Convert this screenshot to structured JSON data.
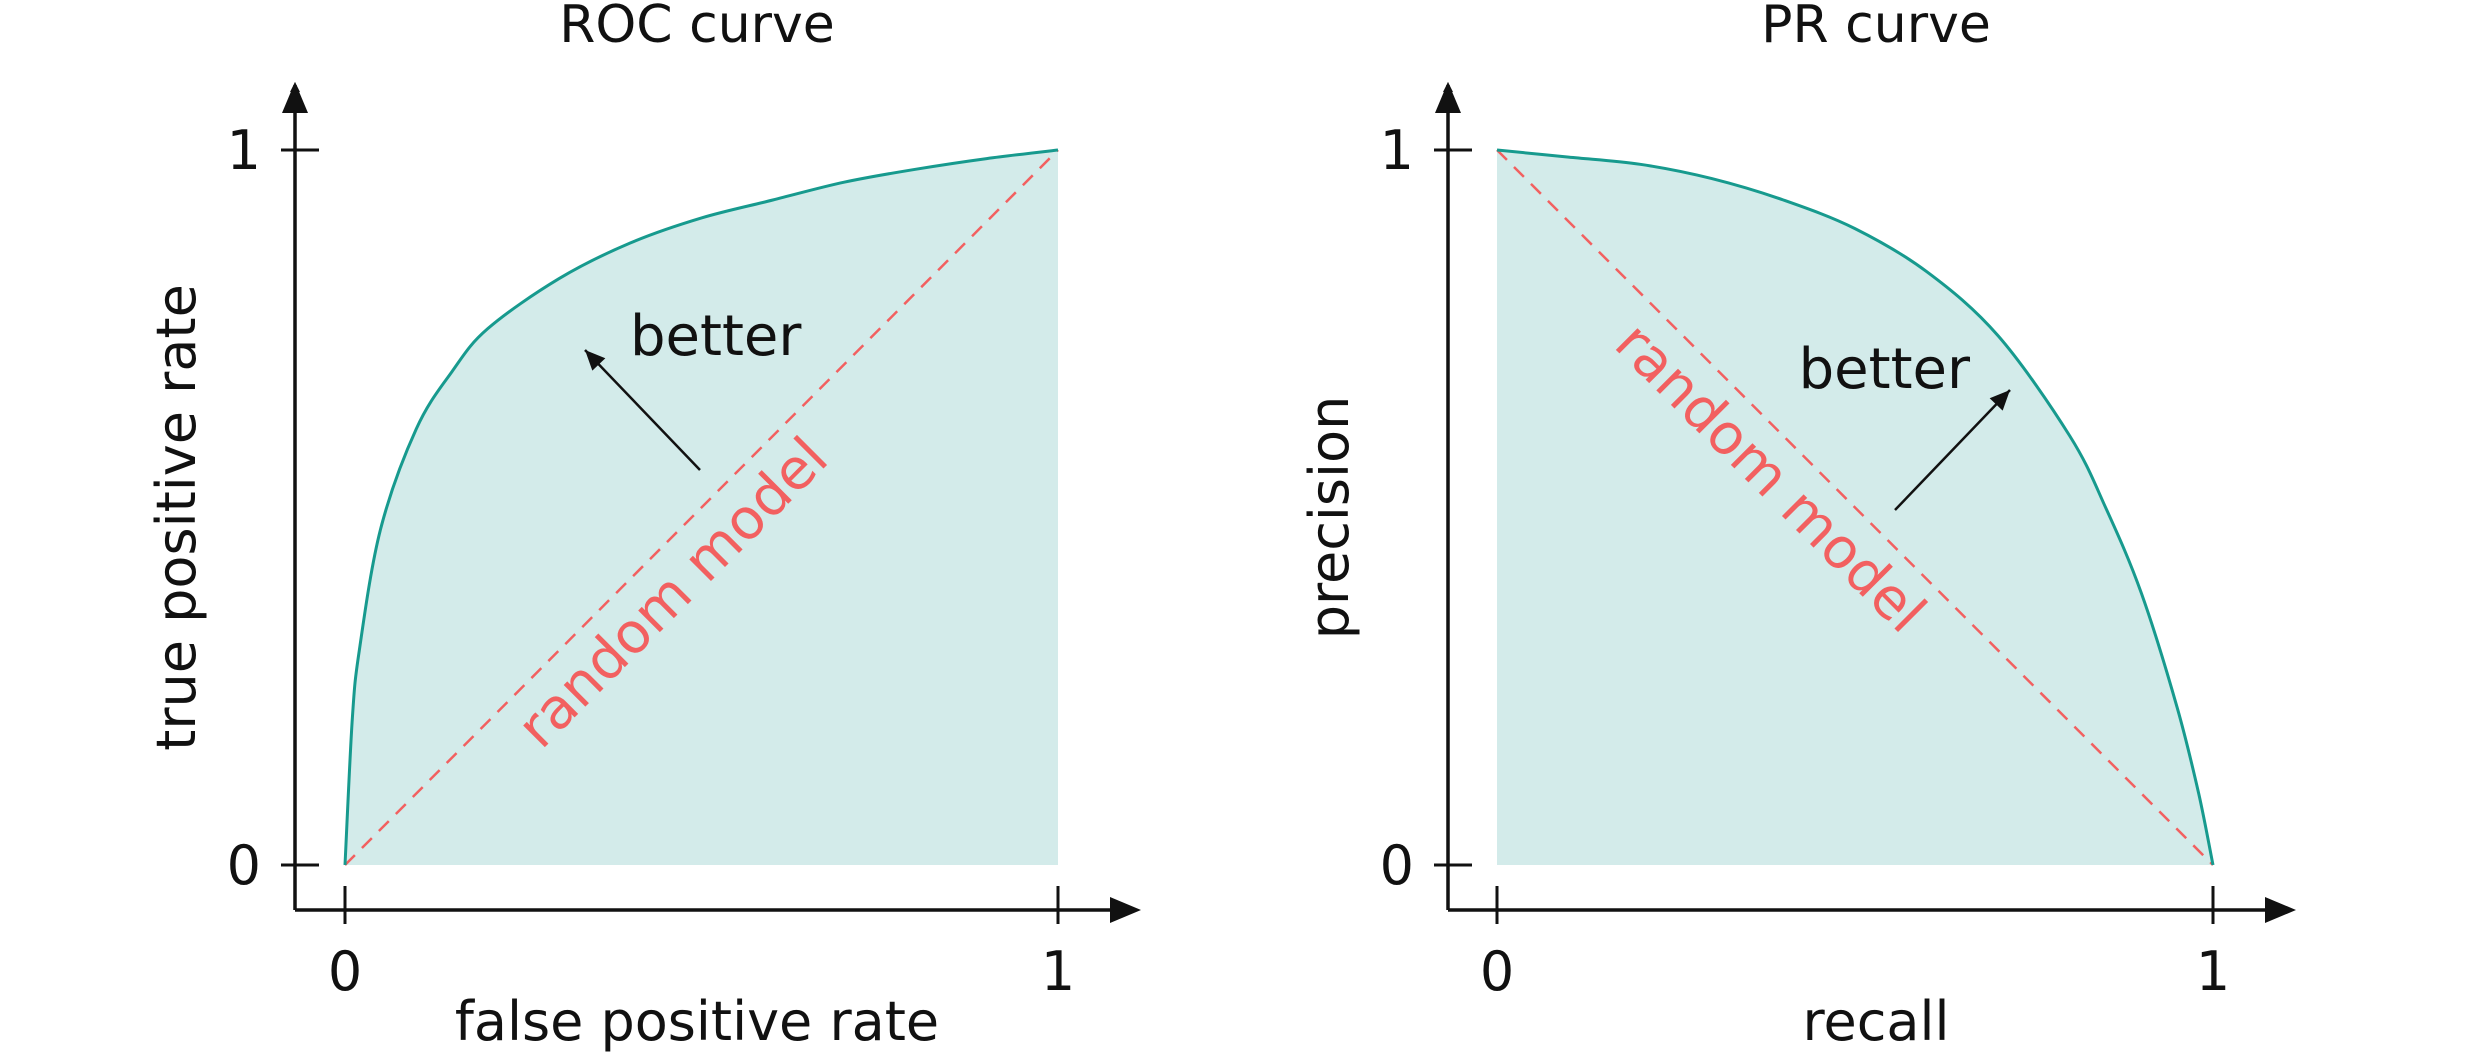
{
  "colors": {
    "curve": "#179a8e",
    "fill": "#d3ebea",
    "random": "#f26060",
    "axis": "#111111"
  },
  "chart_data": [
    {
      "type": "area",
      "title": "ROC curve",
      "xlabel": "false positive rate",
      "ylabel": "true positive rate",
      "xlim": [
        0,
        1
      ],
      "ylim": [
        0,
        1
      ],
      "x_ticks": [
        "0",
        "1"
      ],
      "y_ticks": [
        "0",
        "1"
      ],
      "grid": false,
      "series": [
        {
          "x": [
            0,
            0.01,
            0.02,
            0.05,
            0.1,
            0.15,
            0.2,
            0.3,
            0.4,
            0.5,
            0.6,
            0.7,
            0.8,
            0.9,
            1
          ],
          "y": [
            0,
            0.2,
            0.3,
            0.47,
            0.61,
            0.69,
            0.75,
            0.82,
            0.87,
            0.905,
            0.93,
            0.955,
            0.973,
            0.988,
            1
          ]
        }
      ],
      "baseline": {
        "label": "random model",
        "x": [
          0,
          1
        ],
        "y": [
          0,
          1
        ]
      },
      "annotation": {
        "text": "better",
        "direction": "up-left"
      }
    },
    {
      "type": "area",
      "title": "PR curve",
      "xlabel": "recall",
      "ylabel": "precision",
      "xlim": [
        0,
        1
      ],
      "ylim": [
        0,
        1
      ],
      "x_ticks": [
        "0",
        "1"
      ],
      "y_ticks": [
        "0",
        "1"
      ],
      "grid": false,
      "series": [
        {
          "x": [
            0,
            0.1,
            0.2,
            0.3,
            0.4,
            0.5,
            0.6,
            0.7,
            0.8,
            0.85,
            0.9,
            0.95,
            0.98,
            1
          ],
          "y": [
            1,
            0.99,
            0.98,
            0.96,
            0.93,
            0.89,
            0.83,
            0.74,
            0.6,
            0.5,
            0.38,
            0.22,
            0.1,
            0
          ]
        }
      ],
      "baseline": {
        "label": "random model",
        "x": [
          0,
          1
        ],
        "y": [
          1,
          0
        ]
      },
      "annotation": {
        "text": "better",
        "direction": "up-right"
      }
    }
  ]
}
